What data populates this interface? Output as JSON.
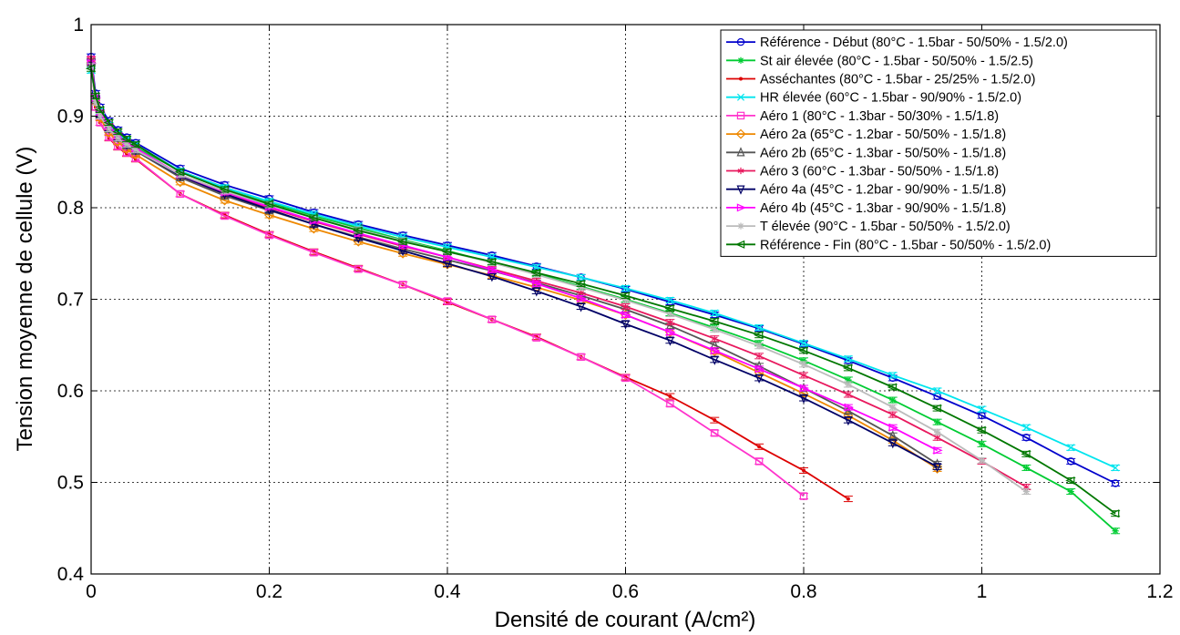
{
  "chart_data": {
    "type": "line",
    "title": "",
    "xlabel": "Densité de courant (A/cm²)",
    "ylabel": "Tension moyenne de cellule (V)",
    "xlim": [
      0,
      1.2
    ],
    "ylim": [
      0.4,
      1.0
    ],
    "xticks": [
      0,
      0.2,
      0.4,
      0.6,
      0.8,
      1.0,
      1.2
    ],
    "xtick_labels": [
      "0",
      "0.2",
      "0.4",
      "0.6",
      "0.8",
      "1",
      "1.2"
    ],
    "yticks": [
      0.4,
      0.5,
      0.6,
      0.7,
      0.8,
      0.9,
      1.0
    ],
    "ytick_labels": [
      "0.4",
      "0.5",
      "0.6",
      "0.7",
      "0.8",
      "0.9",
      "1"
    ],
    "grid": true,
    "legend_position": "top-right",
    "series": [
      {
        "name": "Référence - Début (80°C - 1.5bar - 50/50% - 1.5/2.0)",
        "color": "#0000cc",
        "marker": "circle",
        "x": [
          0,
          0.005,
          0.01,
          0.02,
          0.03,
          0.04,
          0.05,
          0.1,
          0.15,
          0.2,
          0.25,
          0.3,
          0.35,
          0.4,
          0.45,
          0.5,
          0.55,
          0.6,
          0.65,
          0.7,
          0.75,
          0.8,
          0.85,
          0.9,
          0.95,
          1.0,
          1.05,
          1.1,
          1.15
        ],
        "y": [
          0.965,
          0.925,
          0.91,
          0.895,
          0.885,
          0.877,
          0.871,
          0.843,
          0.825,
          0.81,
          0.795,
          0.782,
          0.77,
          0.759,
          0.748,
          0.736,
          0.724,
          0.711,
          0.697,
          0.683,
          0.668,
          0.651,
          0.633,
          0.614,
          0.594,
          0.573,
          0.549,
          0.523,
          0.499
        ]
      },
      {
        "name": "St air élevée (80°C - 1.5bar - 50/50% - 1.5/2.5)",
        "color": "#00cc33",
        "marker": "star",
        "x": [
          0,
          0.005,
          0.01,
          0.02,
          0.03,
          0.04,
          0.05,
          0.1,
          0.15,
          0.2,
          0.25,
          0.3,
          0.35,
          0.4,
          0.45,
          0.5,
          0.55,
          0.6,
          0.65,
          0.7,
          0.75,
          0.8,
          0.85,
          0.9,
          0.95,
          1.0,
          1.05,
          1.1,
          1.15
        ],
        "y": [
          0.96,
          0.92,
          0.905,
          0.89,
          0.88,
          0.872,
          0.866,
          0.84,
          0.822,
          0.806,
          0.791,
          0.778,
          0.765,
          0.753,
          0.74,
          0.728,
          0.714,
          0.7,
          0.685,
          0.669,
          0.652,
          0.633,
          0.612,
          0.59,
          0.566,
          0.542,
          0.516,
          0.49,
          0.447
        ]
      },
      {
        "name": "Asséchantes (80°C - 1.5bar - 25/25% - 1.5/2.0)",
        "color": "#dd0000",
        "marker": "point",
        "x": [
          0,
          0.005,
          0.01,
          0.02,
          0.03,
          0.04,
          0.05,
          0.1,
          0.15,
          0.2,
          0.25,
          0.3,
          0.35,
          0.4,
          0.45,
          0.5,
          0.55,
          0.6,
          0.65,
          0.7,
          0.75,
          0.8,
          0.85
        ],
        "y": [
          0.96,
          0.91,
          0.893,
          0.876,
          0.866,
          0.859,
          0.853,
          0.815,
          0.792,
          0.771,
          0.752,
          0.734,
          0.716,
          0.697,
          0.678,
          0.659,
          0.637,
          0.615,
          0.594,
          0.568,
          0.539,
          0.513,
          0.482
        ]
      },
      {
        "name": "HR élevée (60°C - 1.5bar - 90/90% - 1.5/2.0)",
        "color": "#00e5ee",
        "marker": "x",
        "x": [
          0,
          0.005,
          0.01,
          0.02,
          0.03,
          0.04,
          0.05,
          0.1,
          0.15,
          0.2,
          0.25,
          0.3,
          0.35,
          0.4,
          0.45,
          0.5,
          0.55,
          0.6,
          0.65,
          0.7,
          0.75,
          0.8,
          0.85,
          0.9,
          0.95,
          1.0,
          1.05,
          1.1,
          1.15
        ],
        "y": [
          0.95,
          0.92,
          0.905,
          0.89,
          0.88,
          0.874,
          0.869,
          0.84,
          0.822,
          0.807,
          0.793,
          0.78,
          0.768,
          0.757,
          0.746,
          0.735,
          0.724,
          0.712,
          0.699,
          0.685,
          0.669,
          0.652,
          0.635,
          0.617,
          0.6,
          0.58,
          0.56,
          0.538,
          0.516
        ]
      },
      {
        "name": "Aéro 1 (80°C - 1.3bar - 50/30% - 1.5/1.8)",
        "color": "#ff33cc",
        "marker": "square",
        "x": [
          0,
          0.005,
          0.01,
          0.02,
          0.03,
          0.04,
          0.05,
          0.1,
          0.15,
          0.2,
          0.25,
          0.3,
          0.35,
          0.4,
          0.45,
          0.5,
          0.55,
          0.6,
          0.65,
          0.7,
          0.75,
          0.8
        ],
        "y": [
          0.962,
          0.91,
          0.893,
          0.877,
          0.867,
          0.86,
          0.854,
          0.815,
          0.791,
          0.77,
          0.751,
          0.733,
          0.716,
          0.698,
          0.678,
          0.658,
          0.637,
          0.614,
          0.586,
          0.554,
          0.523,
          0.485
        ]
      },
      {
        "name": "Aéro 2a (65°C - 1.2bar - 50/50% - 1.5/1.8)",
        "color": "#ee8800",
        "marker": "diamond",
        "x": [
          0,
          0.005,
          0.01,
          0.02,
          0.03,
          0.04,
          0.05,
          0.1,
          0.15,
          0.2,
          0.25,
          0.3,
          0.35,
          0.4,
          0.45,
          0.5,
          0.55,
          0.6,
          0.65,
          0.7,
          0.75,
          0.8,
          0.85,
          0.9,
          0.95
        ],
        "y": [
          0.958,
          0.915,
          0.898,
          0.882,
          0.872,
          0.864,
          0.858,
          0.828,
          0.808,
          0.792,
          0.777,
          0.763,
          0.75,
          0.738,
          0.726,
          0.713,
          0.699,
          0.683,
          0.664,
          0.643,
          0.62,
          0.597,
          0.573,
          0.546,
          0.515
        ]
      },
      {
        "name": "Aéro 2b (65°C - 1.3bar - 50/50% - 1.5/1.8)",
        "color": "#555555",
        "marker": "triangle-up",
        "x": [
          0,
          0.005,
          0.01,
          0.02,
          0.03,
          0.04,
          0.05,
          0.1,
          0.15,
          0.2,
          0.25,
          0.3,
          0.35,
          0.4,
          0.45,
          0.5,
          0.55,
          0.6,
          0.65,
          0.7,
          0.75,
          0.8,
          0.85,
          0.9,
          0.95
        ],
        "y": [
          0.96,
          0.918,
          0.901,
          0.886,
          0.876,
          0.868,
          0.862,
          0.833,
          0.813,
          0.797,
          0.782,
          0.768,
          0.755,
          0.743,
          0.731,
          0.718,
          0.704,
          0.689,
          0.671,
          0.65,
          0.627,
          0.603,
          0.578,
          0.551,
          0.52
        ]
      },
      {
        "name": "Aéro 3 (60°C - 1.3bar - 50/50% - 1.5/1.8)",
        "color": "#e8195e",
        "marker": "asterisk",
        "x": [
          0,
          0.005,
          0.01,
          0.02,
          0.03,
          0.04,
          0.05,
          0.1,
          0.15,
          0.2,
          0.25,
          0.3,
          0.35,
          0.4,
          0.45,
          0.5,
          0.55,
          0.6,
          0.65,
          0.7,
          0.75,
          0.8,
          0.85,
          0.9,
          0.95,
          1.0,
          1.05
        ],
        "y": [
          0.962,
          0.92,
          0.903,
          0.888,
          0.878,
          0.87,
          0.864,
          0.835,
          0.815,
          0.8,
          0.785,
          0.771,
          0.758,
          0.746,
          0.733,
          0.72,
          0.707,
          0.692,
          0.675,
          0.657,
          0.638,
          0.617,
          0.596,
          0.574,
          0.549,
          0.523,
          0.495
        ]
      },
      {
        "name": "Aéro 4a (45°C - 1.2bar - 90/90% - 1.5/1.8)",
        "color": "#000066",
        "marker": "triangle-down",
        "x": [
          0,
          0.005,
          0.01,
          0.02,
          0.03,
          0.04,
          0.05,
          0.1,
          0.15,
          0.2,
          0.25,
          0.3,
          0.35,
          0.4,
          0.45,
          0.5,
          0.55,
          0.6,
          0.65,
          0.7,
          0.75,
          0.8,
          0.85,
          0.9,
          0.95
        ],
        "y": [
          0.955,
          0.918,
          0.902,
          0.887,
          0.877,
          0.869,
          0.863,
          0.835,
          0.815,
          0.798,
          0.782,
          0.767,
          0.753,
          0.739,
          0.725,
          0.709,
          0.692,
          0.673,
          0.655,
          0.634,
          0.614,
          0.592,
          0.568,
          0.543,
          0.517
        ]
      },
      {
        "name": "Aéro 4b (45°C - 1.3bar - 90/90% - 1.5/1.8)",
        "color": "#ff00ff",
        "marker": "triangle-right",
        "x": [
          0,
          0.005,
          0.01,
          0.02,
          0.03,
          0.04,
          0.05,
          0.1,
          0.15,
          0.2,
          0.25,
          0.3,
          0.35,
          0.4,
          0.45,
          0.5,
          0.55,
          0.6,
          0.65,
          0.7,
          0.75,
          0.8,
          0.85,
          0.9,
          0.95
        ],
        "y": [
          0.958,
          0.92,
          0.904,
          0.889,
          0.879,
          0.871,
          0.865,
          0.836,
          0.817,
          0.801,
          0.786,
          0.772,
          0.759,
          0.746,
          0.732,
          0.717,
          0.701,
          0.683,
          0.664,
          0.644,
          0.624,
          0.603,
          0.582,
          0.56,
          0.535
        ]
      },
      {
        "name": "T élevée (90°C - 1.5bar - 50/50% - 1.5/2.0)",
        "color": "#bbbbbb",
        "marker": "star",
        "x": [
          0,
          0.005,
          0.01,
          0.02,
          0.03,
          0.04,
          0.05,
          0.1,
          0.15,
          0.2,
          0.25,
          0.3,
          0.35,
          0.4,
          0.45,
          0.5,
          0.55,
          0.6,
          0.65,
          0.7,
          0.75,
          0.8,
          0.85,
          0.9,
          0.95,
          1.0,
          1.05
        ],
        "y": [
          0.955,
          0.915,
          0.9,
          0.886,
          0.876,
          0.869,
          0.863,
          0.836,
          0.818,
          0.803,
          0.789,
          0.776,
          0.764,
          0.752,
          0.74,
          0.727,
          0.713,
          0.699,
          0.684,
          0.667,
          0.649,
          0.629,
          0.607,
          0.582,
          0.555,
          0.524,
          0.49
        ]
      },
      {
        "name": "Référence - Fin (80°C - 1.5bar - 50/50% - 1.5/2.0)",
        "color": "#007700",
        "marker": "triangle-left",
        "x": [
          0,
          0.005,
          0.01,
          0.02,
          0.03,
          0.04,
          0.05,
          0.1,
          0.15,
          0.2,
          0.25,
          0.3,
          0.35,
          0.4,
          0.45,
          0.5,
          0.55,
          0.6,
          0.65,
          0.7,
          0.75,
          0.8,
          0.85,
          0.9,
          0.95,
          1.0,
          1.05,
          1.1,
          1.15
        ],
        "y": [
          0.952,
          0.922,
          0.907,
          0.893,
          0.883,
          0.875,
          0.869,
          0.839,
          0.82,
          0.804,
          0.789,
          0.775,
          0.763,
          0.752,
          0.741,
          0.729,
          0.717,
          0.704,
          0.69,
          0.676,
          0.661,
          0.644,
          0.625,
          0.604,
          0.581,
          0.557,
          0.531,
          0.502,
          0.466
        ]
      }
    ]
  }
}
